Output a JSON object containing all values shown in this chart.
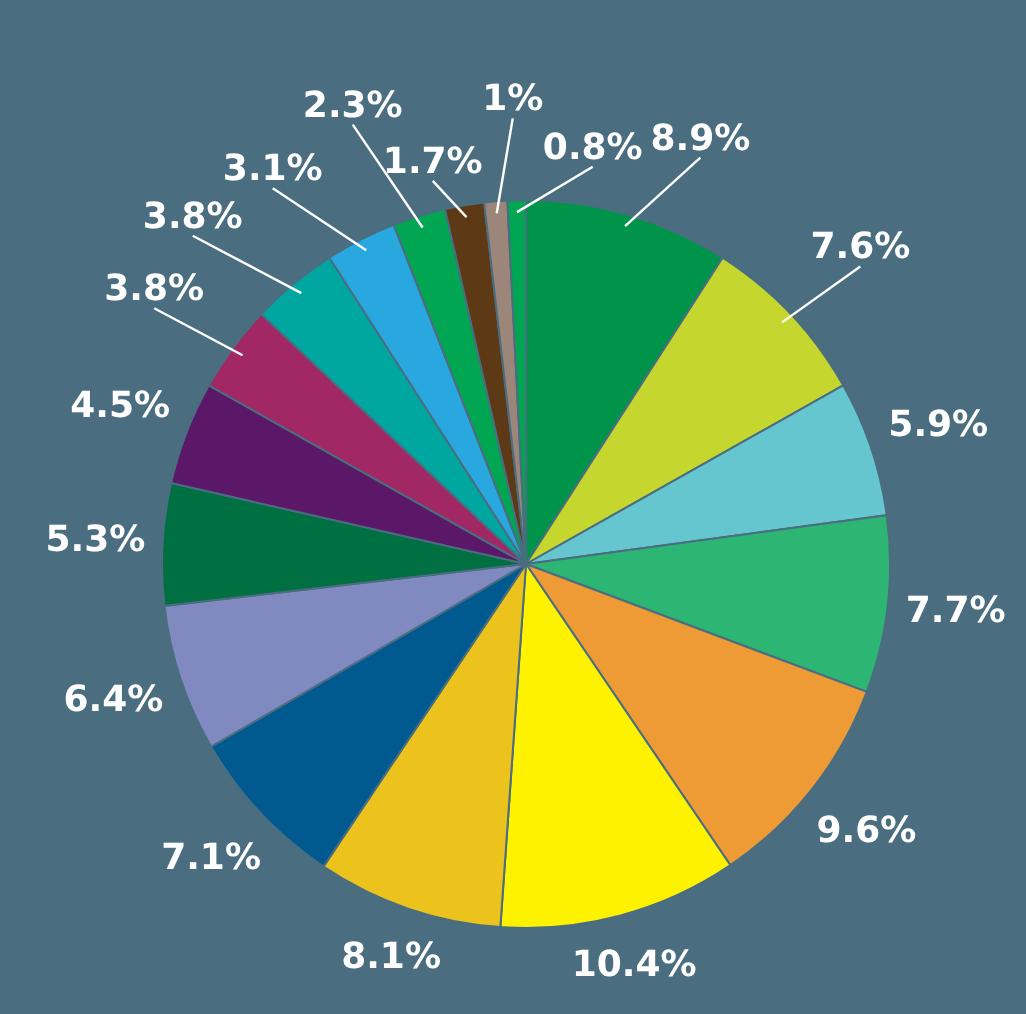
{
  "chart_data": {
    "type": "pie",
    "categories": [
      null,
      null,
      null,
      null,
      null,
      null,
      null,
      null,
      null,
      null,
      null,
      null,
      null,
      null,
      null,
      null,
      null,
      null
    ],
    "values": [
      8.9,
      7.6,
      5.9,
      7.7,
      9.6,
      10.4,
      8.1,
      7.1,
      6.4,
      5.3,
      4.5,
      3.8,
      3.8,
      3.1,
      2.3,
      1.7,
      1,
      0.8
    ],
    "colors": [
      "#00944a",
      "#c5d72f",
      "#66c6cf",
      "#2db573",
      "#ef9b35",
      "#fff200",
      "#ecc31c",
      "#005a8f",
      "#8089c0",
      "#006f41",
      "#5b1768",
      "#a12865",
      "#00a6a0",
      "#29a8e0",
      "#00a651",
      "#5d3915",
      "#9c8679",
      "#00a651"
    ],
    "value_labels": [
      "8.9%",
      "7.6%",
      "5.9%",
      "7.7%",
      "9.6%",
      "10.4%",
      "8.1%",
      "7.1%",
      "6.4%",
      "5.3%",
      "4.5%",
      "3.8%",
      "3.8%",
      "3.1%",
      "2.3%",
      "1.7%",
      "1%",
      "0.8%"
    ]
  }
}
